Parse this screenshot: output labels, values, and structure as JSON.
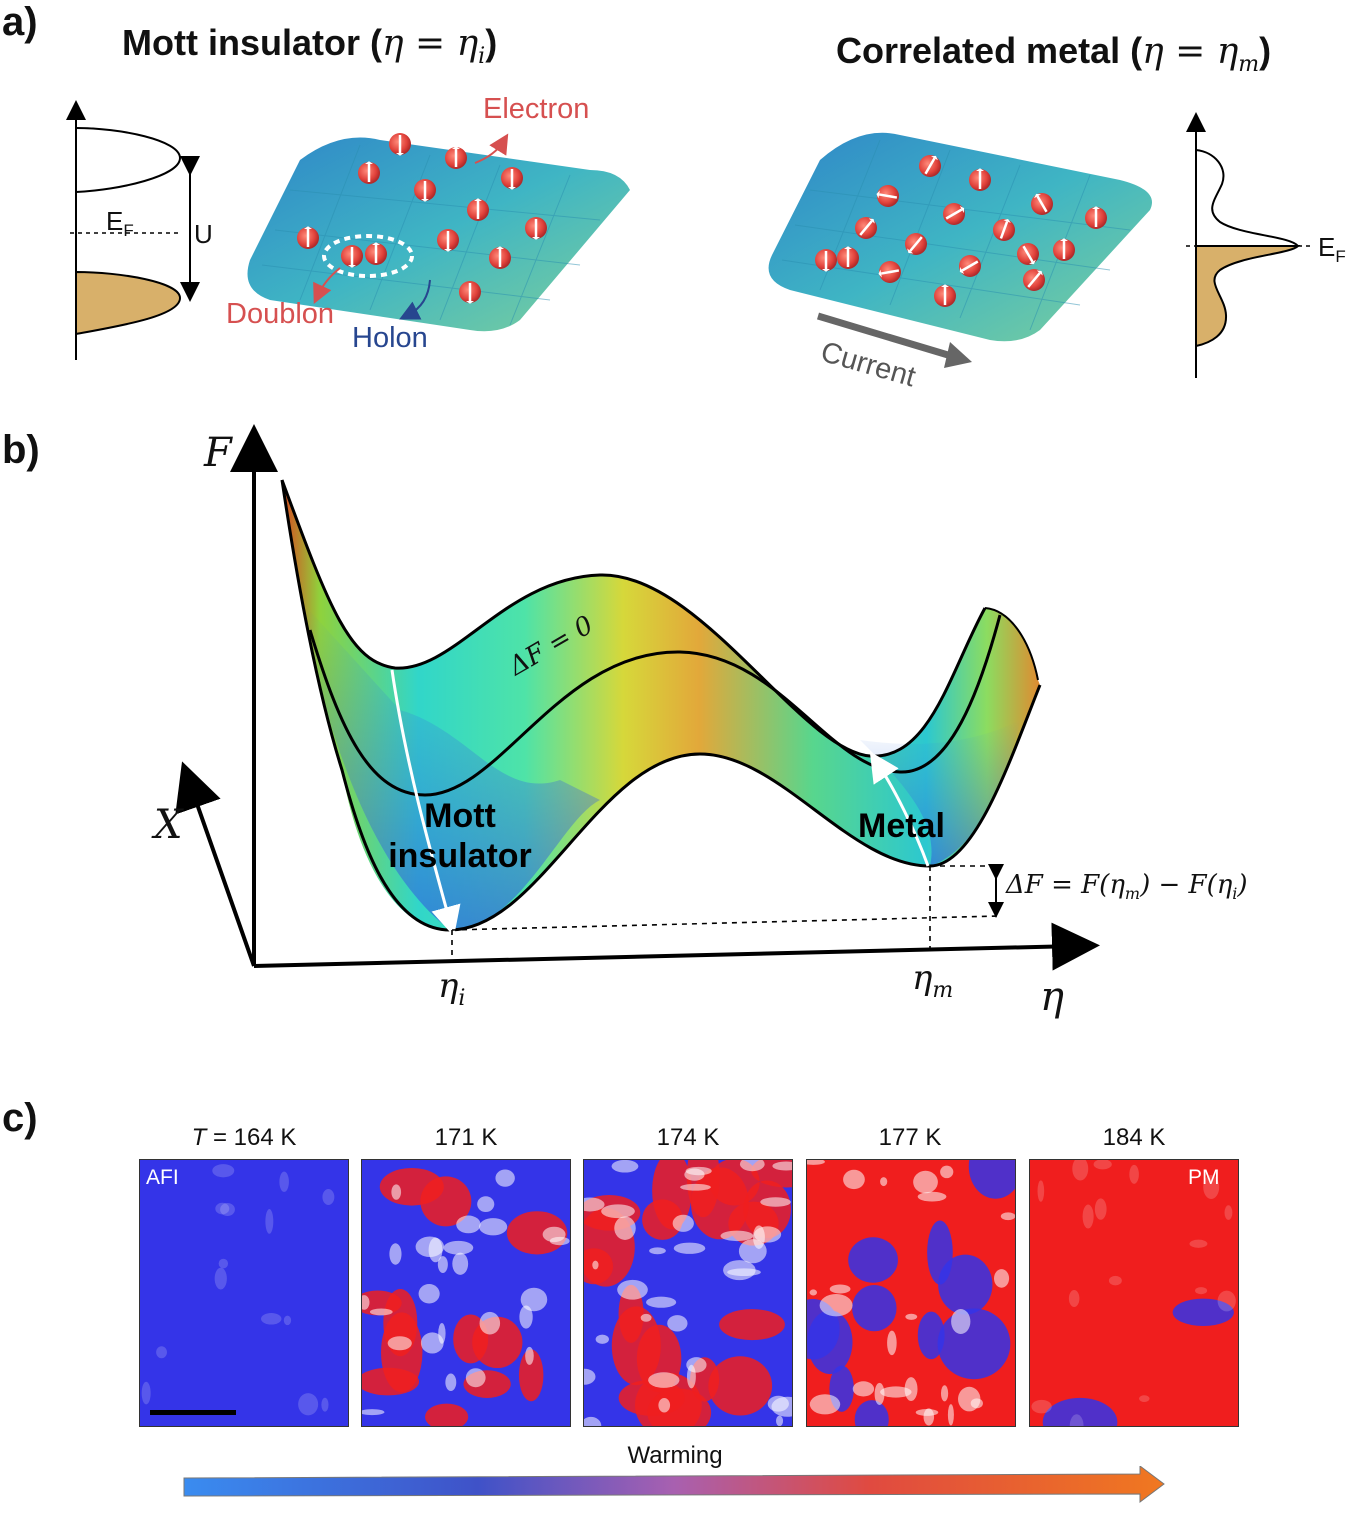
{
  "panel_a": {
    "label": "a)",
    "left_title": {
      "text": "Mott insulator (",
      "math": "η = η",
      "sub": "i",
      "close": ")"
    },
    "right_title": {
      "text": "Correlated metal (",
      "math": "η = η",
      "sub": "m",
      "close": ")"
    },
    "fermi_left": {
      "main": "E",
      "sub": "F"
    },
    "fermi_right": {
      "main": "E",
      "sub": "F"
    },
    "gap_label": "U",
    "electron_label": "Electron",
    "doublon_label": "Doublon",
    "holon_label": "Holon",
    "current_label": "Current"
  },
  "panel_b": {
    "label": "b)",
    "axis_F": "F",
    "axis_X": "X",
    "axis_eta": "η",
    "tick_eta_i": {
      "main": "η",
      "sub": "i"
    },
    "tick_eta_m": {
      "main": "η",
      "sub": "m"
    },
    "curve_label": "ΔF = 0",
    "mott_label_1": "Mott",
    "mott_label_2": "insulator",
    "metal_label": "Metal",
    "delta_label": {
      "a": "ΔF = F(η",
      "sub1": "m",
      "b": ") − F(η",
      "sub2": "i",
      "c": ")"
    }
  },
  "panel_c": {
    "label": "c)",
    "temperature_prefix": "T",
    "temperatures": [
      "= 164 K",
      "171 K",
      "174 K",
      "177 K",
      "184 K"
    ],
    "red_fraction": [
      0.0,
      0.3,
      0.5,
      0.72,
      0.95
    ],
    "left_tag": "AFI",
    "right_tag": "PM",
    "warming_label": "Warming"
  },
  "colors": {
    "insulating": "#3434e8",
    "metallic": "#f01e1e",
    "occupied": "#d8b06a",
    "lattice": "#3aa6c0"
  }
}
